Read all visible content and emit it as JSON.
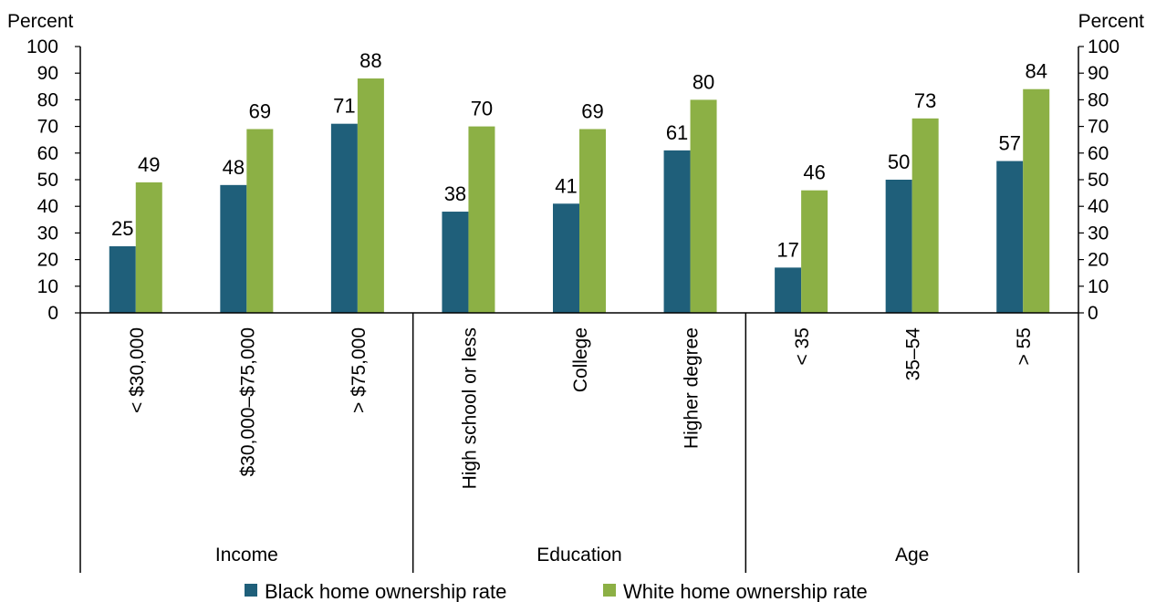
{
  "chart_data": {
    "type": "bar",
    "ylabel_left": "Percent",
    "ylabel_right": "Percent",
    "ylim": [
      0,
      100
    ],
    "yticks": [
      0,
      10,
      20,
      30,
      40,
      50,
      60,
      70,
      80,
      90,
      100
    ],
    "grid": false,
    "categories": [
      "< $30,000",
      "$30,000–$75,000",
      "> $75,000",
      "High school or less",
      "College",
      "Higher degree",
      "< 35",
      "35–54",
      "> 55"
    ],
    "groups": [
      {
        "label": "Income",
        "count": 3
      },
      {
        "label": "Education",
        "count": 3
      },
      {
        "label": "Age",
        "count": 3
      }
    ],
    "series": [
      {
        "name": "Black home ownership rate",
        "color": "#1f5f7a",
        "values": [
          25,
          48,
          71,
          38,
          41,
          61,
          17,
          50,
          57
        ]
      },
      {
        "name": "White home ownership rate",
        "color": "#8cb045",
        "values": [
          49,
          69,
          88,
          70,
          69,
          80,
          46,
          73,
          84
        ]
      }
    ],
    "data_labels": true,
    "legend_position": "bottom"
  }
}
